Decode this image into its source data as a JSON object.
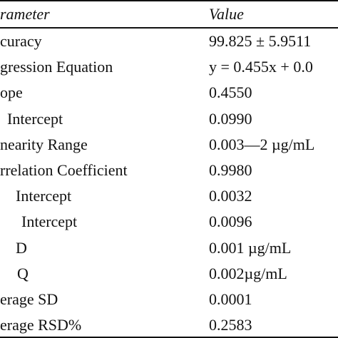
{
  "table": {
    "header": [
      "rameter",
      "Value"
    ],
    "rows": [
      [
        "curacy",
        "99.825 ± 5.9511"
      ],
      [
        "gression Equation",
        "y = 0.455x + 0.0"
      ],
      [
        "ope",
        "0.4550"
      ],
      [
        "Intercept",
        "0.0990"
      ],
      [
        "nearity Range",
        "0.003—2 µg/mL"
      ],
      [
        "rrelation Coefficient",
        "0.9980"
      ],
      [
        "Intercept",
        "0.0032"
      ],
      [
        "Intercept",
        "0.0096"
      ],
      [
        "D",
        "0.001 µg/mL"
      ],
      [
        "Q",
        "0.002µg/mL"
      ],
      [
        "erage SD",
        "0.0001"
      ],
      [
        "erage RSD%",
        "0.2583"
      ]
    ]
  }
}
